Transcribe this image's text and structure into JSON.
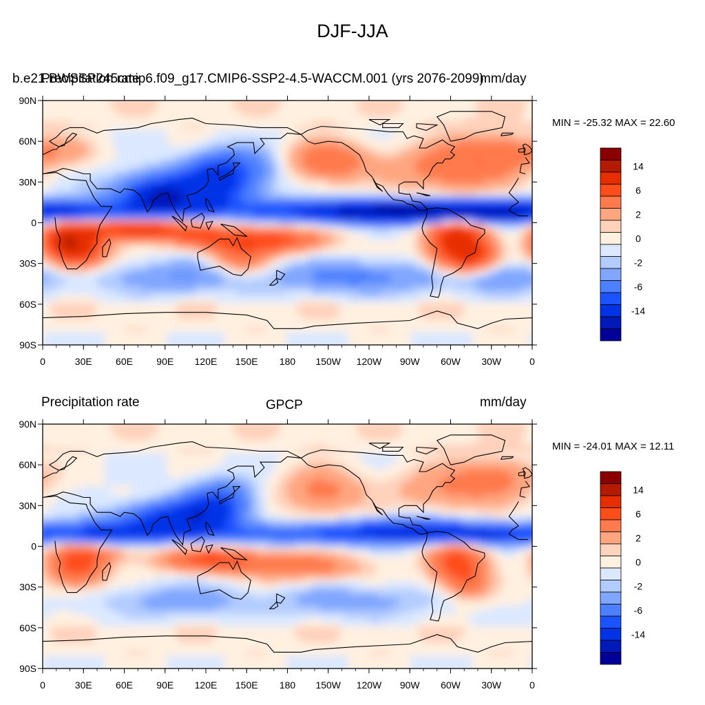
{
  "title": "DJF-JJA",
  "chart_data": [
    {
      "type": "heatmap",
      "projection": "cylindrical-equidistant",
      "left_string": "Precipitation rate",
      "center_string": "b.e21.BWSSP245cmip6.f09_g17.CMIP6-SSP2-4.5-WACCM.001 (yrs 2076-2099)",
      "right_string": "mm/day",
      "stats": "MIN = -25.32 MAX =  22.60",
      "min": -25.32,
      "max": 22.6,
      "lat_ticks": [
        "90N",
        "60N",
        "30N",
        "0",
        "30S",
        "60S",
        "90S"
      ],
      "lon_ticks": [
        "0",
        "30E",
        "60E",
        "90E",
        "120E",
        "150E",
        "180",
        "150W",
        "120W",
        "90W",
        "60W",
        "30W",
        "0"
      ],
      "colorbar_labels": [
        "14",
        "6",
        "2",
        "0",
        "-2",
        "-6",
        "-14"
      ]
    },
    {
      "type": "heatmap",
      "projection": "cylindrical-equidistant",
      "left_string": "Precipitation rate",
      "center_string": "GPCP",
      "right_string": "mm/day",
      "stats": "MIN = -24.01 MAX =  12.11",
      "min": -24.01,
      "max": 12.11,
      "lat_ticks": [
        "90N",
        "60N",
        "30N",
        "0",
        "30S",
        "60S",
        "90S"
      ],
      "lon_ticks": [
        "0",
        "30E",
        "60E",
        "90E",
        "120E",
        "150E",
        "180",
        "150W",
        "120W",
        "90W",
        "60W",
        "30W",
        "0"
      ],
      "colorbar_labels": [
        "14",
        "6",
        "2",
        "0",
        "-2",
        "-6",
        "-14"
      ]
    }
  ],
  "colorbar_colors": [
    "#000099",
    "#0019b8",
    "#0033e6",
    "#1a53ff",
    "#4d80ff",
    "#80a6ff",
    "#b3ccff",
    "#dbe8ff",
    "#fff0e0",
    "#ffd2bc",
    "#ffa680",
    "#ff7a4d",
    "#ff4d1a",
    "#e62e00",
    "#b31a00",
    "#8a0000"
  ],
  "colormap": {
    "levels": [
      -14,
      -10,
      -6,
      -4,
      -2,
      -1,
      -0.5,
      0,
      0.5,
      1,
      2,
      4,
      6,
      10,
      14
    ],
    "colors": [
      "#000099",
      "#0019b8",
      "#0033e6",
      "#1a53ff",
      "#4d80ff",
      "#80a6ff",
      "#b3ccff",
      "#dbe8ff",
      "#fff0e0",
      "#ffd2bc",
      "#ffa680",
      "#ff7a4d",
      "#ff4d1a",
      "#e62e00",
      "#b31a00",
      "#8a0000"
    ]
  }
}
